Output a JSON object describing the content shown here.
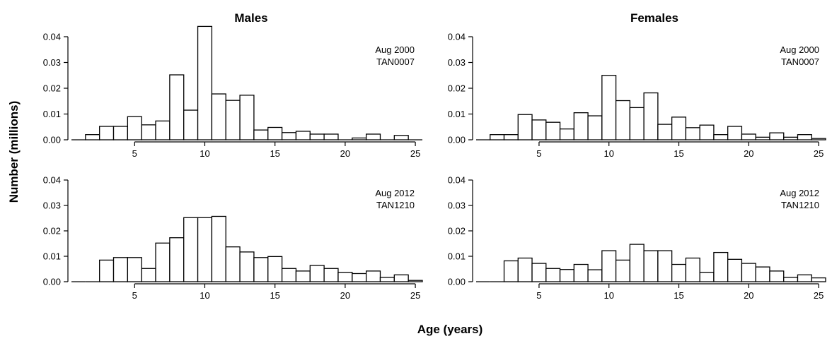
{
  "figure": {
    "ylabel": "Number (millions)",
    "xlabel": "Age (years)",
    "columns": [
      "Males",
      "Females"
    ]
  },
  "chart_data": [
    {
      "type": "bar",
      "title": "Males",
      "annotation": [
        "Aug 2000",
        "TAN0007"
      ],
      "x": [
        1,
        2,
        3,
        4,
        5,
        6,
        7,
        8,
        9,
        10,
        11,
        12,
        13,
        14,
        15,
        16,
        17,
        18,
        19,
        20,
        21,
        22,
        23,
        24,
        25
      ],
      "values": [
        0,
        0.002,
        0.0052,
        0.0052,
        0.009,
        0.0058,
        0.0073,
        0.0252,
        0.0115,
        0.044,
        0.0178,
        0.0153,
        0.0173,
        0.0038,
        0.0048,
        0.0028,
        0.0033,
        0.0022,
        0.0022,
        0,
        0.0007,
        0.0022,
        0,
        0.0017,
        0
      ],
      "xlim": [
        0.5,
        25.5
      ],
      "ylim": [
        0,
        0.04
      ],
      "xticks": [
        5,
        10,
        15,
        20,
        25
      ],
      "yticks": [
        "0.00",
        "0.01",
        "0.02",
        "0.03",
        "0.04"
      ]
    },
    {
      "type": "bar",
      "title": "Females",
      "annotation": [
        "Aug 2000",
        "TAN0007"
      ],
      "x": [
        1,
        2,
        3,
        4,
        5,
        6,
        7,
        8,
        9,
        10,
        11,
        12,
        13,
        14,
        15,
        16,
        17,
        18,
        19,
        20,
        21,
        22,
        23,
        24,
        25
      ],
      "values": [
        0,
        0.002,
        0.002,
        0.0098,
        0.0077,
        0.0068,
        0.0042,
        0.0105,
        0.0093,
        0.025,
        0.0152,
        0.0125,
        0.0182,
        0.006,
        0.0088,
        0.0047,
        0.0057,
        0.002,
        0.0052,
        0.0022,
        0.001,
        0.0027,
        0.001,
        0.002,
        0.0005
      ],
      "xlim": [
        0.5,
        25.5
      ],
      "ylim": [
        0,
        0.04
      ],
      "xticks": [
        5,
        10,
        15,
        20,
        25
      ],
      "yticks": [
        "0.00",
        "0.01",
        "0.02",
        "0.03",
        "0.04"
      ]
    },
    {
      "type": "bar",
      "title": "",
      "annotation": [
        "Aug 2012",
        "TAN1210"
      ],
      "x": [
        1,
        2,
        3,
        4,
        5,
        6,
        7,
        8,
        9,
        10,
        11,
        12,
        13,
        14,
        15,
        16,
        17,
        18,
        19,
        20,
        21,
        22,
        23,
        24,
        25
      ],
      "values": [
        0,
        0,
        0.0085,
        0.0095,
        0.0095,
        0.0052,
        0.0152,
        0.0173,
        0.0252,
        0.0252,
        0.0257,
        0.0137,
        0.0117,
        0.0095,
        0.0099,
        0.0052,
        0.0042,
        0.0064,
        0.0052,
        0.0037,
        0.0032,
        0.0042,
        0.0017,
        0.0027,
        0.0005
      ],
      "xlim": [
        0.5,
        25.5
      ],
      "ylim": [
        0,
        0.04
      ],
      "xticks": [
        5,
        10,
        15,
        20,
        25
      ],
      "yticks": [
        "0.00",
        "0.01",
        "0.02",
        "0.03",
        "0.04"
      ]
    },
    {
      "type": "bar",
      "title": "",
      "annotation": [
        "Aug 2012",
        "TAN1210"
      ],
      "x": [
        1,
        2,
        3,
        4,
        5,
        6,
        7,
        8,
        9,
        10,
        11,
        12,
        13,
        14,
        15,
        16,
        17,
        18,
        19,
        20,
        21,
        22,
        23,
        24,
        25
      ],
      "values": [
        0,
        0,
        0.0082,
        0.0093,
        0.0072,
        0.0052,
        0.0048,
        0.0068,
        0.0047,
        0.0122,
        0.0085,
        0.0147,
        0.0122,
        0.0122,
        0.0068,
        0.0093,
        0.0037,
        0.0115,
        0.0088,
        0.0072,
        0.0058,
        0.0042,
        0.0017,
        0.0027,
        0.0015
      ],
      "xlim": [
        0.5,
        25.5
      ],
      "ylim": [
        0,
        0.04
      ],
      "xticks": [
        5,
        10,
        15,
        20,
        25
      ],
      "yticks": [
        "0.00",
        "0.01",
        "0.02",
        "0.03",
        "0.04"
      ]
    }
  ]
}
